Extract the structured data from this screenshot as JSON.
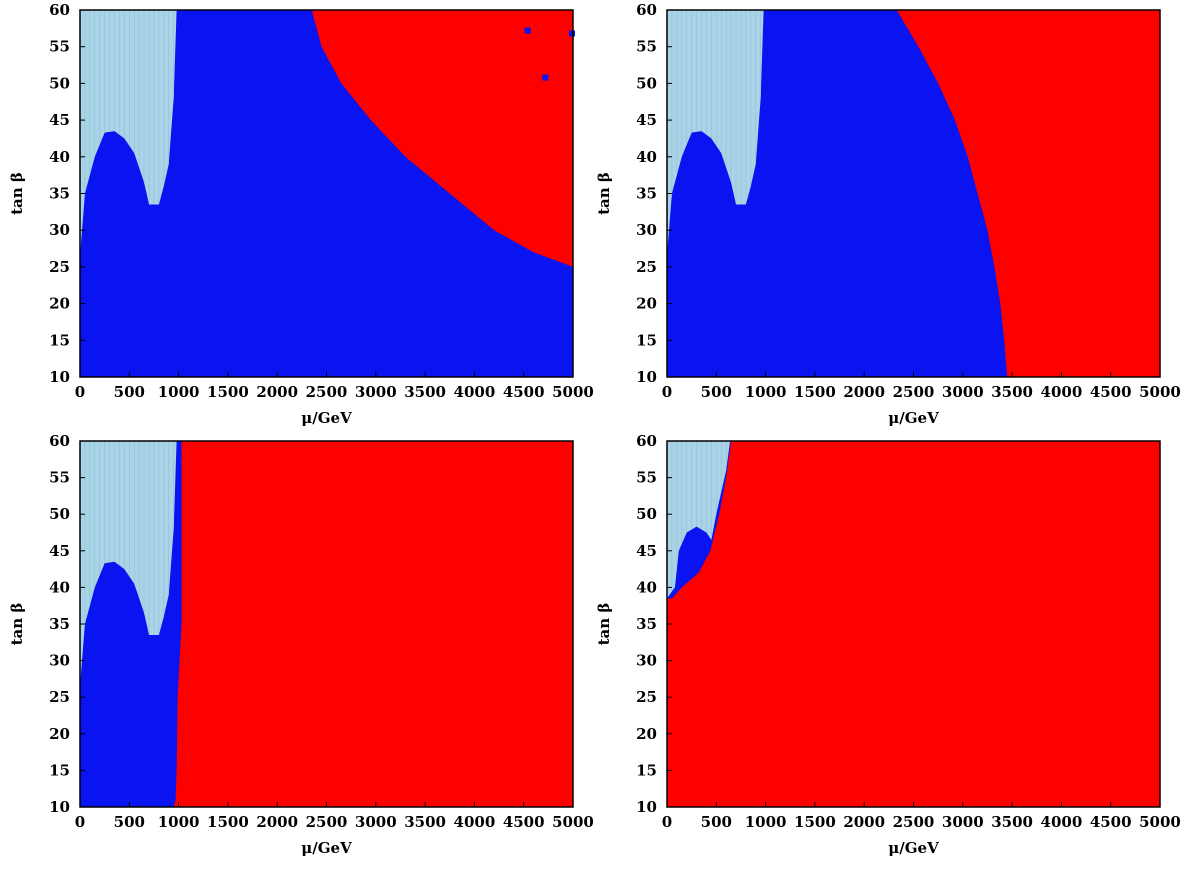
{
  "figure": {
    "colors": {
      "light_region": "#a9d3e6",
      "blue_region": "#0a14f0",
      "red_region": "#ff0000"
    }
  },
  "chart_data": [
    {
      "type": "heatmap",
      "panel": "top-left",
      "xlabel": "μ/GeV",
      "ylabel": "tan β",
      "xlim": [
        0,
        5000
      ],
      "ylim": [
        10,
        60
      ],
      "xticks": [
        "0",
        "500",
        "1000",
        "1500",
        "2000",
        "2500",
        "3000",
        "3500",
        "4000",
        "4500",
        "5000"
      ],
      "yticks": [
        "10",
        "15",
        "20",
        "25",
        "30",
        "35",
        "40",
        "45",
        "50",
        "55",
        "60"
      ],
      "regions": {
        "light_boundary_tanb": [
          [
            0,
            26.5
          ],
          [
            50,
            35
          ],
          [
            150,
            40
          ],
          [
            250,
            43.3
          ],
          [
            350,
            43.5
          ],
          [
            450,
            42.5
          ],
          [
            550,
            40.5
          ],
          [
            650,
            36.5
          ],
          [
            700,
            33.5
          ],
          [
            800,
            33.5
          ],
          [
            850,
            36
          ],
          [
            900,
            39
          ],
          [
            950,
            48
          ],
          [
            980,
            60
          ],
          [
            1000,
            60
          ]
        ],
        "red_boundary_mu": [
          [
            60,
            2350
          ],
          [
            55,
            2450
          ],
          [
            50,
            2650
          ],
          [
            45,
            2950
          ],
          [
            40,
            3300
          ],
          [
            35,
            3750
          ],
          [
            30,
            4200
          ],
          [
            27,
            4600
          ],
          [
            25,
            5000
          ]
        ]
      },
      "points": [
        [
          4540,
          57.2
        ],
        [
          4720,
          50.8
        ],
        [
          4990,
          56.8
        ]
      ]
    },
    {
      "type": "heatmap",
      "panel": "top-right",
      "xlabel": "μ/GeV",
      "ylabel": "tan β",
      "xlim": [
        0,
        5000
      ],
      "ylim": [
        10,
        60
      ],
      "xticks": [
        "0",
        "500",
        "1000",
        "1500",
        "2000",
        "2500",
        "3000",
        "3500",
        "4000",
        "4500",
        "5000"
      ],
      "yticks": [
        "10",
        "15",
        "20",
        "25",
        "30",
        "35",
        "40",
        "45",
        "50",
        "55",
        "60"
      ],
      "regions": {
        "light_boundary_tanb": [
          [
            0,
            26.5
          ],
          [
            50,
            35
          ],
          [
            150,
            40
          ],
          [
            250,
            43.3
          ],
          [
            350,
            43.5
          ],
          [
            450,
            42.5
          ],
          [
            550,
            40.5
          ],
          [
            650,
            36.5
          ],
          [
            700,
            33.5
          ],
          [
            800,
            33.5
          ],
          [
            850,
            36
          ],
          [
            900,
            39
          ],
          [
            950,
            48
          ],
          [
            980,
            60
          ],
          [
            1000,
            60
          ]
        ],
        "red_boundary_mu": [
          [
            60,
            2330
          ],
          [
            55,
            2550
          ],
          [
            50,
            2750
          ],
          [
            45,
            2920
          ],
          [
            40,
            3050
          ],
          [
            35,
            3150
          ],
          [
            30,
            3250
          ],
          [
            25,
            3320
          ],
          [
            20,
            3380
          ],
          [
            15,
            3420
          ],
          [
            10,
            3450
          ]
        ]
      },
      "points": []
    },
    {
      "type": "heatmap",
      "panel": "bottom-left",
      "xlabel": "μ/GeV",
      "ylabel": "tan β",
      "xlim": [
        0,
        5000
      ],
      "ylim": [
        10,
        60
      ],
      "xticks": [
        "0",
        "500",
        "1000",
        "1500",
        "2000",
        "2500",
        "3000",
        "3500",
        "4000",
        "4500",
        "5000"
      ],
      "yticks": [
        "10",
        "15",
        "20",
        "25",
        "30",
        "35",
        "40",
        "45",
        "50",
        "55",
        "60"
      ],
      "regions": {
        "light_boundary_tanb": [
          [
            0,
            26.5
          ],
          [
            50,
            35
          ],
          [
            150,
            40
          ],
          [
            250,
            43.3
          ],
          [
            350,
            43.5
          ],
          [
            450,
            42.5
          ],
          [
            550,
            40.5
          ],
          [
            650,
            36.5
          ],
          [
            700,
            33.5
          ],
          [
            800,
            33.5
          ],
          [
            850,
            36
          ],
          [
            900,
            39
          ],
          [
            950,
            48
          ],
          [
            980,
            60
          ],
          [
            1000,
            60
          ]
        ],
        "red_boundary_mu": [
          [
            60,
            1030
          ],
          [
            40,
            1030
          ],
          [
            35,
            1030
          ],
          [
            30,
            1010
          ],
          [
            25,
            990
          ],
          [
            15,
            980
          ],
          [
            11,
            970
          ],
          [
            10,
            950
          ]
        ]
      },
      "points": []
    },
    {
      "type": "heatmap",
      "panel": "bottom-right",
      "xlabel": "μ/GeV",
      "ylabel": "tan β",
      "xlim": [
        0,
        5000
      ],
      "ylim": [
        10,
        60
      ],
      "xticks": [
        "0",
        "500",
        "1000",
        "1500",
        "2000",
        "2500",
        "3000",
        "3500",
        "4000",
        "4500",
        "5000"
      ],
      "yticks": [
        "10",
        "15",
        "20",
        "25",
        "30",
        "35",
        "40",
        "45",
        "50",
        "55",
        "60"
      ],
      "regions": {
        "light_boundary_tanb": [
          [
            0,
            38.5
          ],
          [
            80,
            40
          ],
          [
            120,
            45
          ],
          [
            200,
            47.5
          ],
          [
            300,
            48.3
          ],
          [
            400,
            47.5
          ],
          [
            450,
            46.5
          ],
          [
            500,
            50
          ],
          [
            550,
            53
          ],
          [
            600,
            56
          ],
          [
            640,
            60
          ]
        ],
        "red_boundary_mu": [
          [
            60,
            650
          ],
          [
            55,
            600
          ],
          [
            50,
            530
          ],
          [
            45,
            440
          ],
          [
            42,
            320
          ],
          [
            40,
            150
          ],
          [
            38.5,
            50
          ],
          [
            38.5,
            0
          ]
        ]
      },
      "points": []
    }
  ]
}
